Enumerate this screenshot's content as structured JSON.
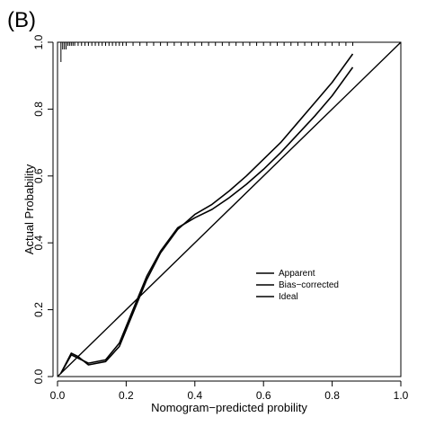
{
  "panel_label": "(B)",
  "chart_data": {
    "type": "line",
    "title": "",
    "xlabel": "Nomogram−predicted probility",
    "ylabel": "Actual Probability",
    "xlim": [
      0.0,
      1.0
    ],
    "ylim": [
      0.0,
      1.0
    ],
    "x_ticks": [
      "0.0",
      "0.2",
      "0.4",
      "0.6",
      "0.8",
      "1.0"
    ],
    "y_ticks": [
      "0.0",
      "0.2",
      "0.4",
      "0.6",
      "0.8",
      "1.0"
    ],
    "grid": false,
    "legend_position": "center-right",
    "series": [
      {
        "name": "Apparent",
        "x": [
          0.01,
          0.04,
          0.06,
          0.09,
          0.14,
          0.18,
          0.22,
          0.26,
          0.3,
          0.35,
          0.4,
          0.45,
          0.5,
          0.55,
          0.6,
          0.65,
          0.7,
          0.75,
          0.8,
          0.86
        ],
        "y": [
          0.01,
          0.07,
          0.06,
          0.035,
          0.045,
          0.09,
          0.19,
          0.29,
          0.37,
          0.44,
          0.485,
          0.515,
          0.555,
          0.6,
          0.65,
          0.7,
          0.76,
          0.82,
          0.88,
          0.965
        ]
      },
      {
        "name": "Bias−corrected",
        "x": [
          0.01,
          0.04,
          0.06,
          0.09,
          0.14,
          0.18,
          0.22,
          0.26,
          0.3,
          0.35,
          0.4,
          0.45,
          0.5,
          0.55,
          0.6,
          0.65,
          0.7,
          0.75,
          0.8,
          0.86
        ],
        "y": [
          0.01,
          0.065,
          0.055,
          0.04,
          0.05,
          0.1,
          0.2,
          0.3,
          0.375,
          0.445,
          0.475,
          0.5,
          0.535,
          0.575,
          0.62,
          0.67,
          0.725,
          0.78,
          0.84,
          0.925
        ]
      },
      {
        "name": "Ideal",
        "x": [
          0.0,
          1.0
        ],
        "y": [
          0.0,
          1.0
        ]
      }
    ],
    "rug_x": [
      0.01,
      0.015,
      0.02,
      0.025,
      0.03,
      0.035,
      0.04,
      0.045,
      0.05,
      0.06,
      0.07,
      0.08,
      0.09,
      0.1,
      0.11,
      0.12,
      0.13,
      0.14,
      0.15,
      0.16,
      0.17,
      0.18,
      0.19,
      0.2,
      0.22,
      0.24,
      0.26,
      0.28,
      0.3,
      0.32,
      0.34,
      0.36,
      0.38,
      0.4,
      0.42,
      0.44,
      0.46,
      0.48,
      0.5,
      0.52,
      0.54,
      0.56,
      0.58,
      0.6,
      0.62,
      0.64,
      0.66,
      0.68,
      0.7,
      0.72,
      0.74,
      0.76,
      0.78,
      0.8,
      0.82,
      0.84,
      0.86
    ]
  }
}
